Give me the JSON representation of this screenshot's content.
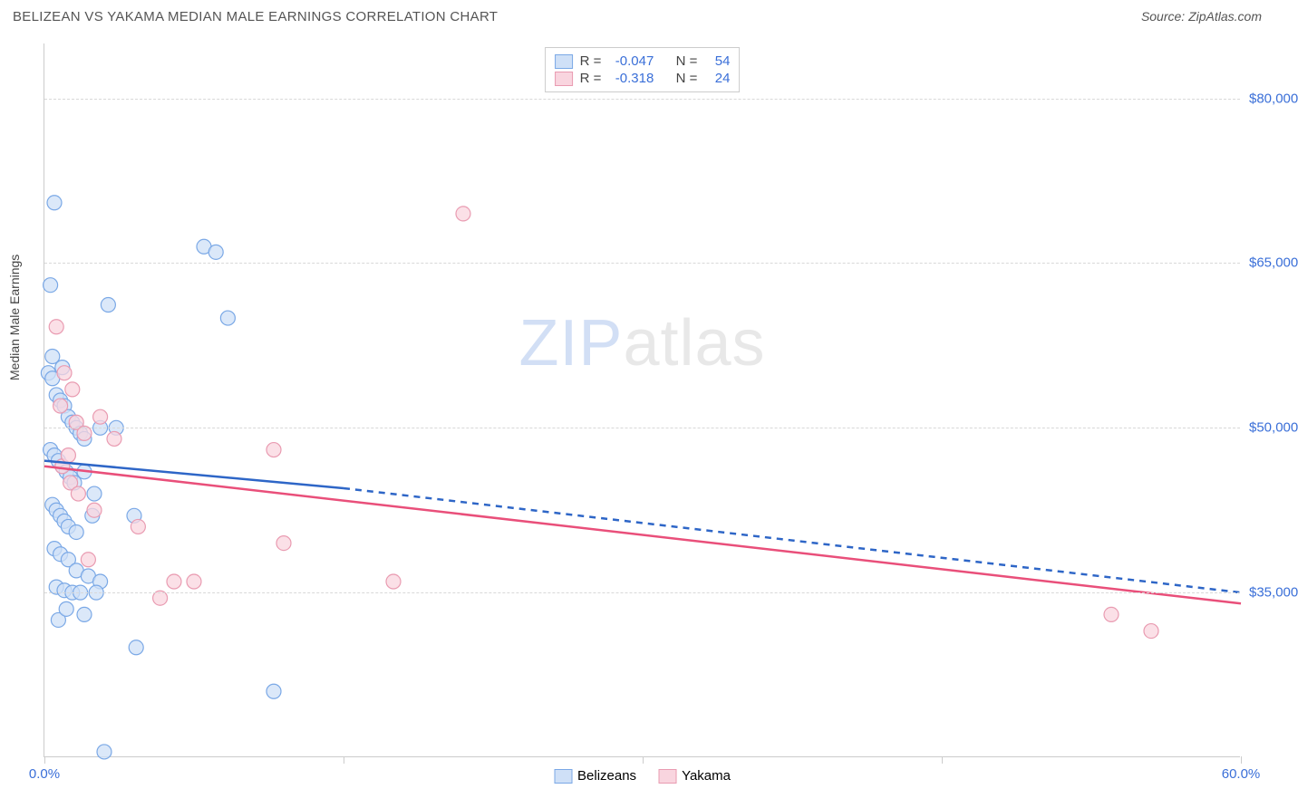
{
  "title": "BELIZEAN VS YAKAMA MEDIAN MALE EARNINGS CORRELATION CHART",
  "source_label": "Source: ZipAtlas.com",
  "watermark_zip": "ZIP",
  "watermark_atlas": "atlas",
  "chart": {
    "type": "scatter",
    "ylabel": "Median Male Earnings",
    "xlim": [
      0,
      60
    ],
    "ylim": [
      20000,
      85000
    ],
    "x_tick_min_label": "0.0%",
    "x_tick_max_label": "60.0%",
    "x_tick_positions_pct": [
      0,
      25,
      50,
      75,
      100
    ],
    "y_ticks": [
      {
        "value": 35000,
        "label": "$35,000",
        "color": "#3a6fd8"
      },
      {
        "value": 50000,
        "label": "$50,000",
        "color": "#3a6fd8"
      },
      {
        "value": 65000,
        "label": "$65,000",
        "color": "#3a6fd8"
      },
      {
        "value": 80000,
        "label": "$80,000",
        "color": "#3a6fd8"
      }
    ],
    "colors": {
      "blue_fill": "#cfe0f7",
      "blue_stroke": "#7aa8e6",
      "blue_line": "#2e66c7",
      "pink_fill": "#f9d5df",
      "pink_stroke": "#e99bb1",
      "pink_line": "#e94f7a",
      "grid": "#d8d8d8",
      "axis": "#cccccc",
      "text": "#555555",
      "tick_value": "#3a6fd8"
    },
    "marker_radius": 8,
    "marker_stroke_width": 1.2,
    "line_width": 2.5,
    "stats": [
      {
        "series": "blue",
        "R_label": "R =",
        "R_value": "-0.047",
        "N_label": "N =",
        "N_value": "54"
      },
      {
        "series": "pink",
        "R_label": "R =",
        "R_value": "-0.318",
        "N_label": "N =",
        "N_value": "24"
      }
    ],
    "legend": [
      {
        "series": "blue",
        "label": "Belizeans"
      },
      {
        "series": "pink",
        "label": "Yakama"
      }
    ],
    "trend_lines": [
      {
        "series": "blue",
        "x1": 0,
        "y1": 47000,
        "x2": 15,
        "y2": 44500,
        "solid": true
      },
      {
        "series": "blue",
        "x1": 15,
        "y1": 44500,
        "x2": 60,
        "y2": 35000,
        "solid": false
      },
      {
        "series": "pink",
        "x1": 0,
        "y1": 46500,
        "x2": 60,
        "y2": 34000,
        "solid": true
      }
    ],
    "series_data": {
      "blue": [
        [
          0.5,
          70500
        ],
        [
          0.3,
          63000
        ],
        [
          3.2,
          61200
        ],
        [
          8.0,
          66500
        ],
        [
          8.6,
          66000
        ],
        [
          9.2,
          60000
        ],
        [
          0.2,
          55000
        ],
        [
          0.4,
          54500
        ],
        [
          0.6,
          53000
        ],
        [
          0.8,
          52500
        ],
        [
          1.0,
          52000
        ],
        [
          1.2,
          51000
        ],
        [
          1.4,
          50500
        ],
        [
          1.6,
          50000
        ],
        [
          1.8,
          49500
        ],
        [
          2.0,
          49000
        ],
        [
          2.8,
          50000
        ],
        [
          3.6,
          50000
        ],
        [
          0.3,
          48000
        ],
        [
          0.5,
          47500
        ],
        [
          0.7,
          47000
        ],
        [
          0.9,
          46500
        ],
        [
          1.1,
          46000
        ],
        [
          1.3,
          45500
        ],
        [
          1.5,
          45000
        ],
        [
          2.0,
          46000
        ],
        [
          2.5,
          44000
        ],
        [
          0.4,
          43000
        ],
        [
          0.6,
          42500
        ],
        [
          0.8,
          42000
        ],
        [
          1.0,
          41500
        ],
        [
          1.2,
          41000
        ],
        [
          1.6,
          40500
        ],
        [
          2.4,
          42000
        ],
        [
          4.5,
          42000
        ],
        [
          0.5,
          39000
        ],
        [
          0.8,
          38500
        ],
        [
          1.2,
          38000
        ],
        [
          1.6,
          37000
        ],
        [
          2.2,
          36500
        ],
        [
          2.8,
          36000
        ],
        [
          0.6,
          35500
        ],
        [
          1.0,
          35200
        ],
        [
          1.4,
          35000
        ],
        [
          1.8,
          35000
        ],
        [
          2.6,
          35000
        ],
        [
          0.7,
          32500
        ],
        [
          4.6,
          30000
        ],
        [
          2.0,
          33000
        ],
        [
          1.1,
          33500
        ],
        [
          11.5,
          26000
        ],
        [
          3.0,
          20500
        ],
        [
          0.4,
          56500
        ],
        [
          0.9,
          55500
        ]
      ],
      "pink": [
        [
          21.0,
          69500
        ],
        [
          0.6,
          59200
        ],
        [
          1.0,
          55000
        ],
        [
          1.4,
          53500
        ],
        [
          0.8,
          52000
        ],
        [
          1.6,
          50500
        ],
        [
          2.0,
          49500
        ],
        [
          3.5,
          49000
        ],
        [
          2.8,
          51000
        ],
        [
          11.5,
          48000
        ],
        [
          0.9,
          46500
        ],
        [
          1.3,
          45000
        ],
        [
          1.7,
          44000
        ],
        [
          2.5,
          42500
        ],
        [
          4.7,
          41000
        ],
        [
          12.0,
          39500
        ],
        [
          2.2,
          38000
        ],
        [
          6.5,
          36000
        ],
        [
          17.5,
          36000
        ],
        [
          5.8,
          34500
        ],
        [
          7.5,
          36000
        ],
        [
          53.5,
          33000
        ],
        [
          55.5,
          31500
        ],
        [
          1.2,
          47500
        ]
      ]
    }
  }
}
